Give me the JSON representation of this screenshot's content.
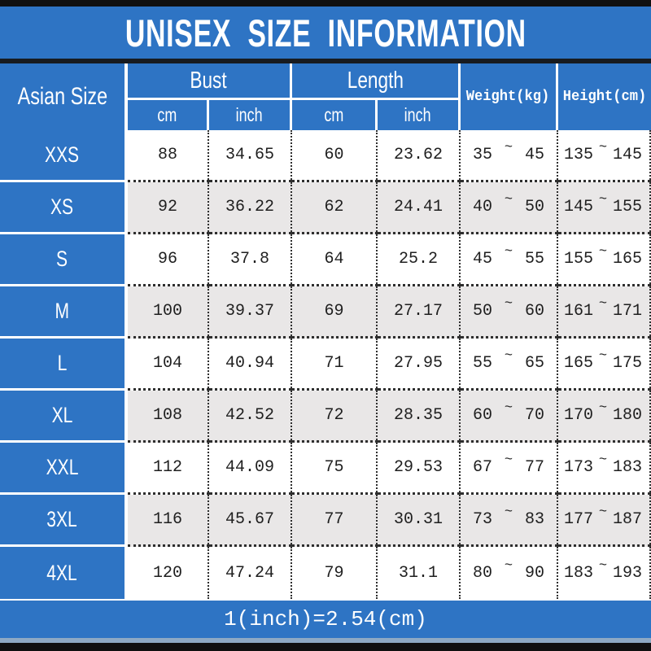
{
  "title": "UNISEX SIZE INFORMATION",
  "footer_note": "1(inch)=2.54(cm)",
  "colors": {
    "header_blue": "#2e74c4",
    "alt_row_gray": "#e9e7e7",
    "bar_black": "#101010",
    "header_text": "#ffffff",
    "cell_text": "#1f1f1f"
  },
  "table": {
    "corner_label": "Asian Size",
    "groups": [
      {
        "label": "Bust",
        "subs": [
          "cm",
          "inch"
        ]
      },
      {
        "label": "Length",
        "subs": [
          "cm",
          "inch"
        ]
      }
    ],
    "singles": [
      "Weight(kg)",
      "Height(cm)"
    ],
    "range_separator": "~",
    "rows": [
      {
        "size": "XXS",
        "bust_cm": "88",
        "bust_inch": "34.65",
        "length_cm": "60",
        "length_inch": "23.62",
        "weight_min": "35",
        "weight_max": "45",
        "height_min": "135",
        "height_max": "145"
      },
      {
        "size": "XS",
        "bust_cm": "92",
        "bust_inch": "36.22",
        "length_cm": "62",
        "length_inch": "24.41",
        "weight_min": "40",
        "weight_max": "50",
        "height_min": "145",
        "height_max": "155"
      },
      {
        "size": "S",
        "bust_cm": "96",
        "bust_inch": "37.8",
        "length_cm": "64",
        "length_inch": "25.2",
        "weight_min": "45",
        "weight_max": "55",
        "height_min": "155",
        "height_max": "165"
      },
      {
        "size": "M",
        "bust_cm": "100",
        "bust_inch": "39.37",
        "length_cm": "69",
        "length_inch": "27.17",
        "weight_min": "50",
        "weight_max": "60",
        "height_min": "161",
        "height_max": "171"
      },
      {
        "size": "L",
        "bust_cm": "104",
        "bust_inch": "40.94",
        "length_cm": "71",
        "length_inch": "27.95",
        "weight_min": "55",
        "weight_max": "65",
        "height_min": "165",
        "height_max": "175"
      },
      {
        "size": "XL",
        "bust_cm": "108",
        "bust_inch": "42.52",
        "length_cm": "72",
        "length_inch": "28.35",
        "weight_min": "60",
        "weight_max": "70",
        "height_min": "170",
        "height_max": "180"
      },
      {
        "size": "XXL",
        "bust_cm": "112",
        "bust_inch": "44.09",
        "length_cm": "75",
        "length_inch": "29.53",
        "weight_min": "67",
        "weight_max": "77",
        "height_min": "173",
        "height_max": "183"
      },
      {
        "size": "3XL",
        "bust_cm": "116",
        "bust_inch": "45.67",
        "length_cm": "77",
        "length_inch": "30.31",
        "weight_min": "73",
        "weight_max": "83",
        "height_min": "177",
        "height_max": "187"
      },
      {
        "size": "4XL",
        "bust_cm": "120",
        "bust_inch": "47.24",
        "length_cm": "79",
        "length_inch": "31.1",
        "weight_min": "80",
        "weight_max": "90",
        "height_min": "183",
        "height_max": "193"
      }
    ]
  }
}
